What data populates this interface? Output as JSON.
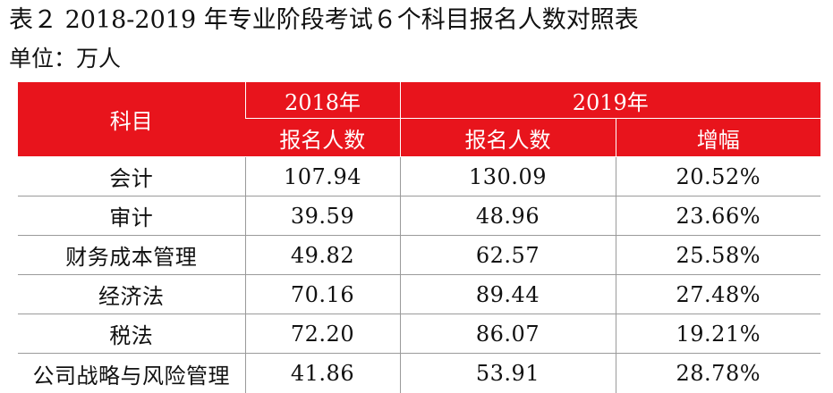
{
  "title": "表２ 2018-2019 年专业阶段考试６个科目报名人数对照表",
  "unit": "单位：万人",
  "table": {
    "header_subject": "科目",
    "header_2018": "2018年",
    "header_2019": "2019年",
    "sub_2018_count": "报名人数",
    "sub_2019_count": "报名人数",
    "sub_2019_growth": "增幅",
    "rows": [
      {
        "subject": "会计",
        "count_2018": "107.94",
        "count_2019": "130.09",
        "growth": "20.52%"
      },
      {
        "subject": "审计",
        "count_2018": "39.59",
        "count_2019": "48.96",
        "growth": "23.66%"
      },
      {
        "subject": "财务成本管理",
        "count_2018": "49.82",
        "count_2019": "62.57",
        "growth": "25.58%"
      },
      {
        "subject": "经济法",
        "count_2018": "70.16",
        "count_2019": "89.44",
        "growth": "27.48%"
      },
      {
        "subject": "税法",
        "count_2018": "72.20",
        "count_2019": "86.07",
        "growth": "19.21%"
      },
      {
        "subject": "公司战略与风险管理",
        "count_2018": "41.86",
        "count_2019": "53.91",
        "growth": "28.78%"
      }
    ]
  },
  "colors": {
    "header_bg": "#e8141c",
    "header_text": "#ffffff",
    "grid_line": "#9a9a9a"
  }
}
